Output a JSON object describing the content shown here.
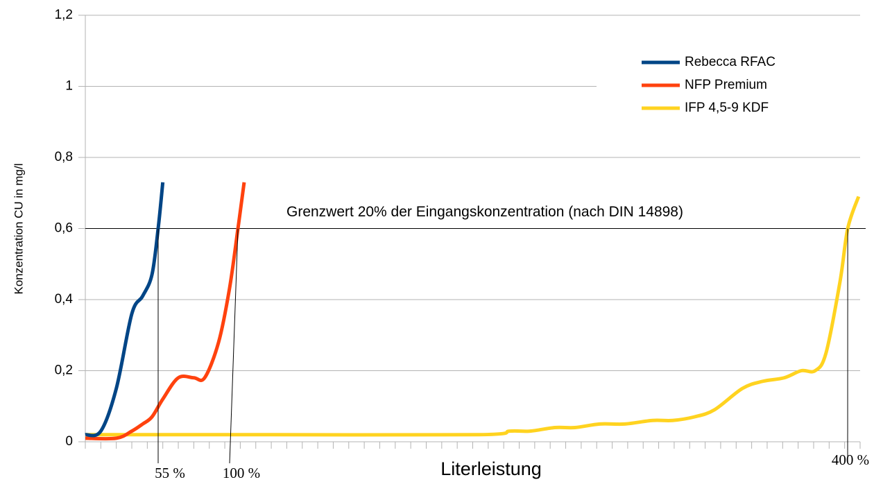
{
  "chart_data": {
    "type": "line",
    "y_label": "Konzentration CU in mg/l",
    "x_label": "Literleistung",
    "ylim": [
      0,
      1.2
    ],
    "yticks": [
      0,
      {
        "value": 0.2,
        "label": "0,2"
      },
      {
        "value": 0.4,
        "label": "0,4"
      },
      {
        "value": 0.6,
        "label": "0,6"
      },
      {
        "value": 0.8,
        "label": "0,8"
      },
      1,
      {
        "value": 1.2,
        "label": "1,2"
      }
    ],
    "xlim": [
      0,
      50
    ],
    "xticks": [
      0,
      1,
      2,
      3,
      4,
      5,
      6,
      7,
      8,
      9,
      10,
      11,
      12,
      13,
      14,
      15,
      16,
      17,
      18,
      19,
      20,
      21,
      22,
      23,
      24,
      25,
      26,
      27,
      28,
      29,
      30,
      31,
      32,
      33,
      34,
      35,
      36,
      37,
      38,
      39,
      40,
      41,
      42,
      43,
      44,
      45,
      46,
      47,
      48,
      49,
      50
    ],
    "grid": true,
    "legend": "upper right",
    "series": [
      {
        "name": "Rebecca RFAC",
        "color": "#004586",
        "x": [
          0,
          1,
          2,
          3,
          3.7,
          4.3,
          4.7,
          5
        ],
        "values": [
          0.02,
          0.03,
          0.15,
          0.36,
          0.41,
          0.47,
          0.6,
          0.73
        ]
      },
      {
        "name": "NFP Premium",
        "color": "#ff420e",
        "x": [
          0,
          2,
          3,
          3.7,
          4.3,
          5,
          6,
          7,
          7.7,
          8.6,
          9.3,
          9.85,
          10.25
        ],
        "values": [
          0.01,
          0.01,
          0.03,
          0.05,
          0.07,
          0.12,
          0.18,
          0.18,
          0.18,
          0.28,
          0.43,
          0.6,
          0.73
        ]
      },
      {
        "name": "IFP 4,5-9 KDF",
        "color": "#ffd320",
        "x": [
          0,
          12,
          25.4,
          27.4,
          28.7,
          30.3,
          31.6,
          33.2,
          34.8,
          36.6,
          37.9,
          39.3,
          40.6,
          42.4,
          43.7,
          45.1,
          46.2,
          47.1,
          47.8,
          48.7,
          49.2,
          49.9
        ],
        "values": [
          0.02,
          0.02,
          0.02,
          0.03,
          0.03,
          0.04,
          0.04,
          0.05,
          0.05,
          0.06,
          0.06,
          0.07,
          0.09,
          0.15,
          0.17,
          0.18,
          0.2,
          0.2,
          0.25,
          0.45,
          0.6,
          0.69
        ]
      }
    ],
    "threshold": {
      "value": 0.6,
      "label": "Grenzwert 20% der Eingangskonzentration (nach DIN 14898)"
    },
    "annotations": [
      {
        "text": "55 %",
        "x": 4.7
      },
      {
        "text": "100 %",
        "x": 9.85
      },
      {
        "text": "400 %",
        "x": 49.2
      }
    ]
  }
}
